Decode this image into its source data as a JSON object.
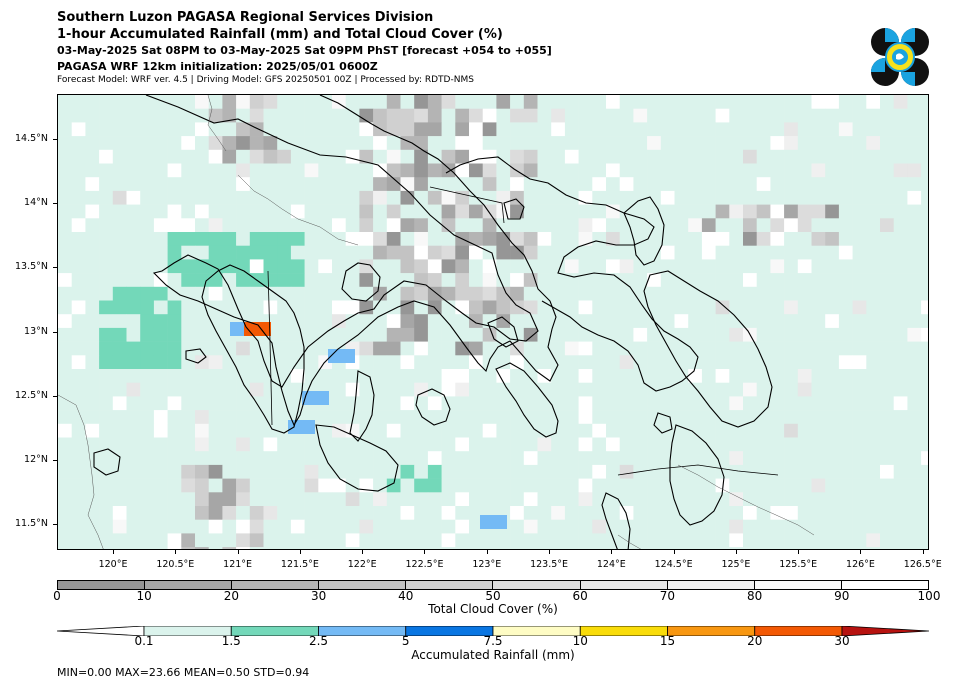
{
  "header": {
    "line1": "Southern Luzon PAGASA Regional Services Division",
    "line2": "1-hour Accumulated Rainfall (mm) and Total Cloud Cover (%)",
    "line3": "03-May-2025 Sat 08PM to 03-May-2025 Sat 09PM PhST [forecast +054 to +055]",
    "line4": "PAGASA WRF 12km initialization: 2025/05/01 0600Z",
    "line5": "Forecast Model: WRF ver. 4.5 | Driving Model: GFS 20250501 00Z | Processed by: RDTD-NMS"
  },
  "logo": {
    "name": "pagasa-logo",
    "colors": [
      "#111111",
      "#1aa3e0",
      "#f5e11c"
    ]
  },
  "map": {
    "lat_labels": [
      "14.5°N",
      "14°N",
      "13.5°N",
      "13°N",
      "12.5°N",
      "12°N",
      "11.5°N"
    ],
    "lon_labels": [
      "120°E",
      "120.5°E",
      "121°E",
      "121.5°E",
      "122°E",
      "122.5°E",
      "123°E",
      "123.5°E",
      "124°E",
      "124.5°E",
      "125°E",
      "125.5°E",
      "126°E",
      "126.5°E"
    ],
    "lat_range": [
      11.3,
      14.85
    ],
    "lon_range": [
      119.55,
      126.55
    ]
  },
  "cloud_scale": {
    "ticks": [
      "0",
      "10",
      "20",
      "30",
      "40",
      "50",
      "60",
      "70",
      "80",
      "90",
      "100"
    ],
    "colors": [
      "#969696",
      "#a6a6a6",
      "#b4b4b4",
      "#c3c3c3",
      "#d0d0d0",
      "#dcdcdc",
      "#e7e7e7",
      "#f0f0f0",
      "#f8f8f8",
      "#ffffff"
    ],
    "label": "Total Cloud Cover (%)"
  },
  "rain_scale": {
    "ticks": [
      "0.1",
      "1.5",
      "2.5",
      "5",
      "7.5",
      "10",
      "15",
      "20",
      "30"
    ],
    "colors": [
      "#ffffff",
      "#dbf3ec",
      "#73d8b9",
      "#74baf5",
      "#0a76e2",
      "#fefcc4",
      "#f9dc0a",
      "#f89711",
      "#f35904",
      "#b71310"
    ],
    "label": "Accumulated Rainfall (mm)"
  },
  "stats": "MIN=0.00   MAX=23.66   MEAN=0.50   STD=0.94"
}
